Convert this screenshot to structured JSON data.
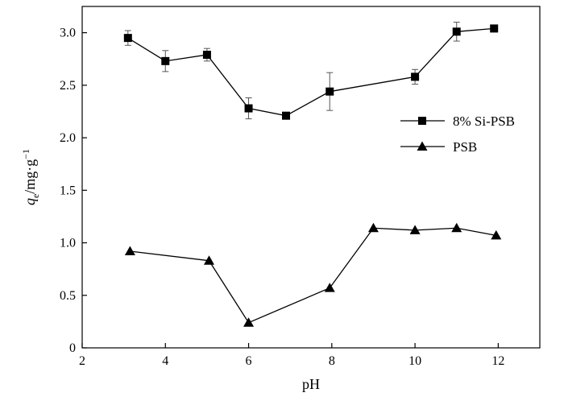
{
  "chart_data": {
    "type": "line",
    "title": "",
    "xlabel": "pH",
    "ylabel": {
      "main": "q",
      "sub": "e",
      "rest": "/mg·g",
      "sup": "−1"
    },
    "xlim": [
      2,
      13
    ],
    "ylim": [
      0,
      3.25
    ],
    "xticks": [
      2,
      4,
      6,
      8,
      10,
      12
    ],
    "yticks": [
      0,
      0.5,
      1.0,
      1.5,
      2.0,
      2.5,
      3.0
    ],
    "ytick_labels": [
      "0",
      "0.5",
      "1.0",
      "1.5",
      "2.0",
      "2.5",
      "3.0"
    ],
    "grid": false,
    "legend_position": "right",
    "series": [
      {
        "name": "8% Si-PSB",
        "marker": "square",
        "x": [
          3.1,
          4.0,
          5.0,
          6.0,
          6.9,
          7.95,
          10.0,
          11.0,
          11.9
        ],
        "y": [
          2.95,
          2.73,
          2.79,
          2.28,
          2.21,
          2.44,
          2.58,
          3.01,
          3.04
        ],
        "err": [
          0.07,
          0.1,
          0.06,
          0.1,
          0.0,
          0.18,
          0.07,
          0.09,
          0.0
        ]
      },
      {
        "name": "PSB",
        "marker": "triangle",
        "x": [
          3.15,
          5.05,
          6.0,
          7.95,
          9.0,
          10.0,
          11.0,
          11.95
        ],
        "y": [
          0.92,
          0.83,
          0.24,
          0.57,
          1.14,
          1.12,
          1.14,
          1.07
        ]
      }
    ]
  }
}
